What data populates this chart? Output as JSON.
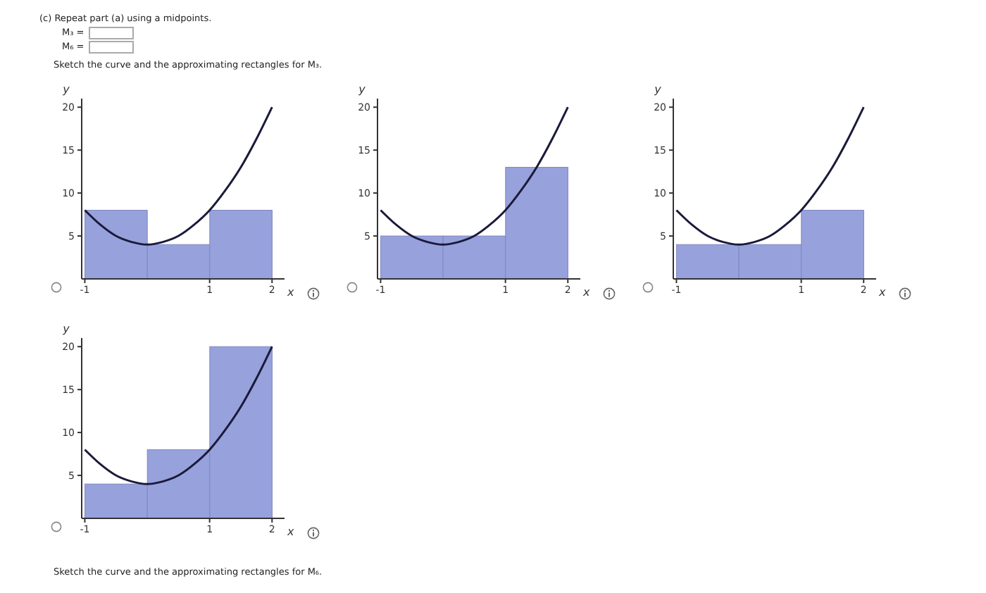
{
  "chart_data": [
    {
      "type": "bar",
      "annotations": [
        "(c) Repeat part (a) using a midpoints.",
        "M₃ =",
        "M₆ =",
        "Sketch the curve and the approximating rectangles for M₃."
      ],
      "xlabel": "x",
      "ylabel": "y",
      "xlim": [
        -1.05,
        2.2
      ],
      "ylim": [
        0,
        21
      ],
      "xticks": [
        -1,
        1,
        2
      ],
      "yticks": [
        5,
        10,
        15,
        20
      ],
      "series": [
        {
          "x": [
            -0.5,
            0.5,
            1.5
          ],
          "values": [
            8,
            4,
            8
          ],
          "color": "#97a1dc"
        },
        {
          "type": "line",
          "x": [
            -1,
            -0.75,
            -0.5,
            -0.25,
            0,
            0.25,
            0.5,
            0.75,
            1,
            1.25,
            1.5,
            1.75,
            2
          ],
          "values": [
            8,
            6.3,
            5,
            4.3,
            4,
            4.3,
            5,
            6.3,
            8,
            10.3,
            13,
            16.3,
            20
          ],
          "color": "#1a1a3a"
        }
      ],
      "grid": false,
      "legend": false
    },
    {
      "type": "bar",
      "xlabel": "x",
      "ylabel": "y",
      "xlim": [
        -1.05,
        2.2
      ],
      "ylim": [
        0,
        21
      ],
      "xticks": [
        -1,
        1,
        2
      ],
      "yticks": [
        5,
        10,
        15,
        20
      ],
      "series": [
        {
          "x": [
            -0.5,
            0.5,
            1.5
          ],
          "values": [
            5,
            5,
            13
          ],
          "color": "#97a1dc"
        },
        {
          "type": "line",
          "x": [
            -1,
            -0.75,
            -0.5,
            -0.25,
            0,
            0.25,
            0.5,
            0.75,
            1,
            1.25,
            1.5,
            1.75,
            2
          ],
          "values": [
            8,
            6.3,
            5,
            4.3,
            4,
            4.3,
            5,
            6.3,
            8,
            10.3,
            13,
            16.3,
            20
          ],
          "color": "#1a1a3a"
        }
      ],
      "grid": false,
      "legend": false
    },
    {
      "type": "bar",
      "xlabel": "x",
      "ylabel": "y",
      "xlim": [
        -1.05,
        2.2
      ],
      "ylim": [
        0,
        21
      ],
      "xticks": [
        -1,
        1,
        2
      ],
      "yticks": [
        5,
        10,
        15,
        20
      ],
      "series": [
        {
          "x": [
            -0.5,
            0.5,
            1.5
          ],
          "values": [
            4,
            4,
            8
          ],
          "color": "#97a1dc"
        },
        {
          "type": "line",
          "x": [
            -1,
            -0.75,
            -0.5,
            -0.25,
            0,
            0.25,
            0.5,
            0.75,
            1,
            1.25,
            1.5,
            1.75,
            2
          ],
          "values": [
            8,
            6.3,
            5,
            4.3,
            4,
            4.3,
            5,
            6.3,
            8,
            10.3,
            13,
            16.3,
            20
          ],
          "color": "#1a1a3a"
        }
      ],
      "grid": false,
      "legend": false
    },
    {
      "type": "bar",
      "annotations": [
        "Sketch the curve and the approximating rectangles for M₆."
      ],
      "xlabel": "x",
      "ylabel": "y",
      "xlim": [
        -1.05,
        2.2
      ],
      "ylim": [
        0,
        21
      ],
      "xticks": [
        -1,
        1,
        2
      ],
      "yticks": [
        5,
        10,
        15,
        20
      ],
      "series": [
        {
          "x": [
            -0.5,
            0.5,
            1.5
          ],
          "values": [
            4,
            8,
            20
          ],
          "color": "#97a1dc"
        },
        {
          "type": "line",
          "x": [
            -1,
            -0.75,
            -0.5,
            -0.25,
            0,
            0.25,
            0.5,
            0.75,
            1,
            1.25,
            1.5,
            1.75,
            2
          ],
          "values": [
            8,
            6.3,
            5,
            4.3,
            4,
            4.3,
            5,
            6.3,
            8,
            10.3,
            13,
            16.3,
            20
          ],
          "color": "#1a1a3a"
        }
      ],
      "grid": false,
      "legend": false
    }
  ]
}
